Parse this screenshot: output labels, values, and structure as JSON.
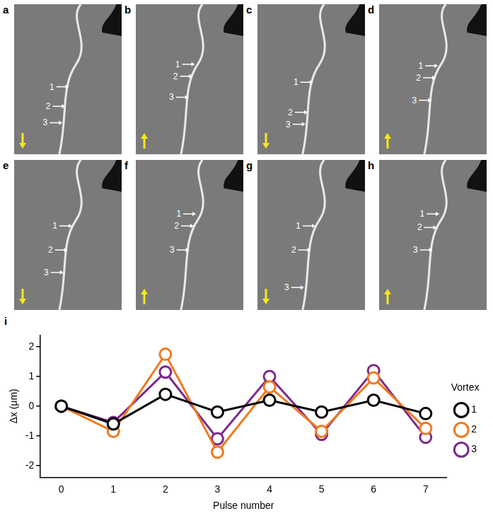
{
  "panels": [
    {
      "letter": "a",
      "arrow": "down",
      "labels": [
        "1",
        "2",
        "3"
      ]
    },
    {
      "letter": "b",
      "arrow": "up",
      "labels": [
        "1",
        "2",
        "3"
      ]
    },
    {
      "letter": "c",
      "arrow": "down",
      "labels": [
        "1",
        "2",
        "3"
      ]
    },
    {
      "letter": "d",
      "arrow": "up",
      "labels": [
        "1",
        "2",
        "3"
      ]
    },
    {
      "letter": "e",
      "arrow": "down",
      "labels": [
        "1",
        "2",
        "3"
      ]
    },
    {
      "letter": "f",
      "arrow": "up",
      "labels": [
        "1",
        "2",
        "3"
      ]
    },
    {
      "letter": "g",
      "arrow": "down",
      "labels": [
        "1",
        "2",
        "3"
      ]
    },
    {
      "letter": "h",
      "arrow": "up",
      "labels": [
        "1",
        "2",
        "3"
      ]
    }
  ],
  "chart_data": {
    "type": "line",
    "panel_letter": "i",
    "x_label": "Pulse number",
    "y_label": "Δx (μm)",
    "x": [
      0,
      1,
      2,
      3,
      4,
      5,
      6,
      7
    ],
    "xlim": [
      -0.4,
      7.4
    ],
    "xticks": [
      0,
      1,
      2,
      3,
      4,
      5,
      6,
      7
    ],
    "ylim": [
      -2.4,
      2.4
    ],
    "yticks": [
      -2,
      -1,
      0,
      1,
      2
    ],
    "baseline": 0,
    "grid": false,
    "legend": "right",
    "legend_title": "Vortex",
    "marker": "circle",
    "series": [
      {
        "name": "1",
        "color": "#000000",
        "values": [
          0,
          -0.6,
          0.4,
          -0.2,
          0.2,
          -0.2,
          0.2,
          -0.25
        ]
      },
      {
        "name": "2",
        "color": "#f07a1e",
        "values": [
          0,
          -0.85,
          1.75,
          -1.55,
          0.65,
          -0.85,
          0.95,
          -0.75
        ]
      },
      {
        "name": "3",
        "color": "#7a2a8c",
        "values": [
          0,
          -0.55,
          1.15,
          -1.1,
          1.0,
          -0.95,
          1.2,
          -1.05
        ]
      }
    ]
  }
}
